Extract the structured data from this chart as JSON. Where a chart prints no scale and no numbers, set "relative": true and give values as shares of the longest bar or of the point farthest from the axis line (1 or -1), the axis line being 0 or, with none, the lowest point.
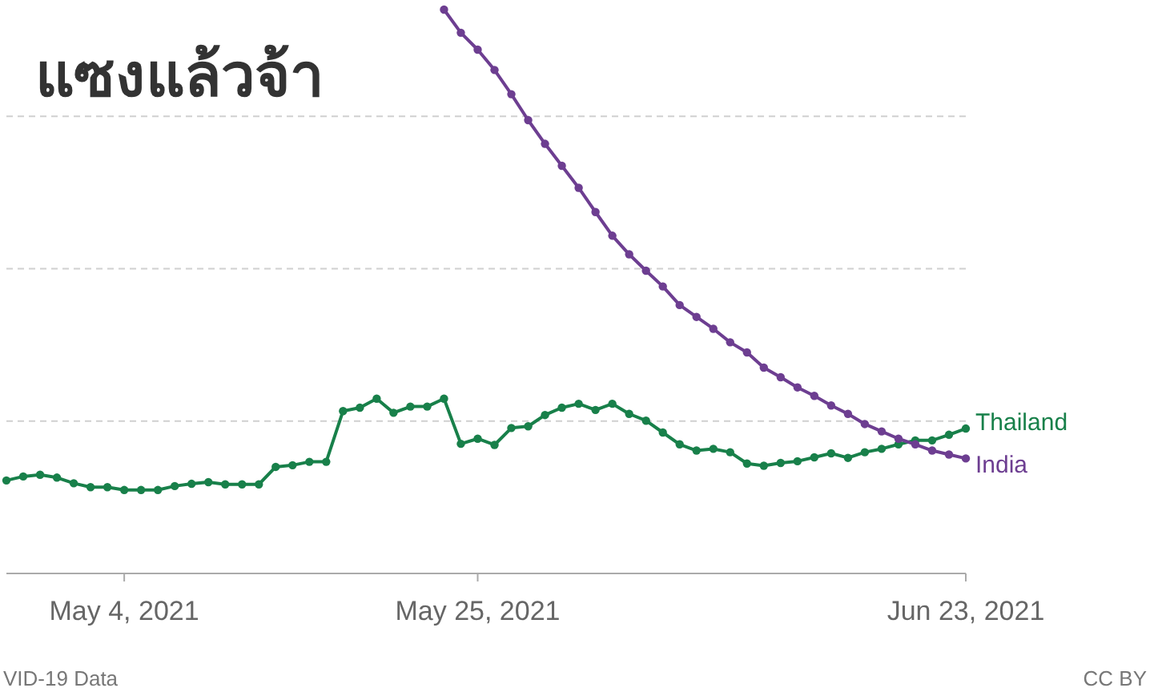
{
  "chart_data": {
    "type": "line",
    "title": "แซงแล้วจ้า",
    "relative": true,
    "marker": "circle",
    "line_style": "solid",
    "grid": "y",
    "xlim": [
      "2021-04-27",
      "2021-06-23"
    ],
    "xticks": [
      {
        "value": "2021-05-04",
        "label": "May 4, 2021"
      },
      {
        "value": "2021-05-25",
        "label": "May 25, 2021"
      },
      {
        "value": "2021-06-23",
        "label": "Jun 23, 2021"
      }
    ],
    "series": [
      {
        "name": "Thailand",
        "color": "#18804a",
        "x": [
          "2021-04-27",
          "2021-04-28",
          "2021-04-29",
          "2021-04-30",
          "2021-05-01",
          "2021-05-02",
          "2021-05-03",
          "2021-05-04",
          "2021-05-05",
          "2021-05-06",
          "2021-05-07",
          "2021-05-08",
          "2021-05-09",
          "2021-05-10",
          "2021-05-11",
          "2021-05-12",
          "2021-05-13",
          "2021-05-14",
          "2021-05-15",
          "2021-05-16",
          "2021-05-17",
          "2021-05-18",
          "2021-05-19",
          "2021-05-20",
          "2021-05-21",
          "2021-05-22",
          "2021-05-23",
          "2021-05-24",
          "2021-05-25",
          "2021-05-26",
          "2021-05-27",
          "2021-05-28",
          "2021-05-29",
          "2021-05-30",
          "2021-05-31",
          "2021-06-01",
          "2021-06-02",
          "2021-06-03",
          "2021-06-04",
          "2021-06-05",
          "2021-06-06",
          "2021-06-07",
          "2021-06-08",
          "2021-06-09",
          "2021-06-10",
          "2021-06-11",
          "2021-06-12",
          "2021-06-13",
          "2021-06-14",
          "2021-06-15",
          "2021-06-16",
          "2021-06-17",
          "2021-06-18",
          "2021-06-19",
          "2021-06-20",
          "2021-06-21",
          "2021-06-22",
          "2021-06-23"
        ],
        "values": [
          0.165,
          0.172,
          0.175,
          0.17,
          0.16,
          0.153,
          0.153,
          0.148,
          0.148,
          0.148,
          0.155,
          0.159,
          0.162,
          0.158,
          0.158,
          0.158,
          0.189,
          0.192,
          0.198,
          0.198,
          0.288,
          0.294,
          0.31,
          0.285,
          0.296,
          0.296,
          0.31,
          0.23,
          0.239,
          0.228,
          0.258,
          0.261,
          0.281,
          0.294,
          0.301,
          0.29,
          0.301,
          0.283,
          0.271,
          0.25,
          0.229,
          0.218,
          0.221,
          0.215,
          0.195,
          0.191,
          0.196,
          0.199,
          0.206,
          0.213,
          0.205,
          0.215,
          0.221,
          0.229,
          0.236,
          0.236,
          0.246,
          0.257
        ]
      },
      {
        "name": "India",
        "color": "#6d3e91",
        "x": [
          "2021-05-23",
          "2021-05-24",
          "2021-05-25",
          "2021-05-26",
          "2021-05-27",
          "2021-05-28",
          "2021-05-29",
          "2021-05-30",
          "2021-05-31",
          "2021-06-01",
          "2021-06-02",
          "2021-06-03",
          "2021-06-04",
          "2021-06-05",
          "2021-06-06",
          "2021-06-07",
          "2021-06-08",
          "2021-06-09",
          "2021-06-10",
          "2021-06-11",
          "2021-06-12",
          "2021-06-13",
          "2021-06-14",
          "2021-06-15",
          "2021-06-16",
          "2021-06-17",
          "2021-06-18",
          "2021-06-19",
          "2021-06-20",
          "2021-06-21",
          "2021-06-22",
          "2021-06-23"
        ],
        "values": [
          1.0,
          0.959,
          0.929,
          0.893,
          0.85,
          0.804,
          0.762,
          0.723,
          0.684,
          0.641,
          0.599,
          0.566,
          0.537,
          0.509,
          0.476,
          0.455,
          0.434,
          0.41,
          0.392,
          0.365,
          0.348,
          0.33,
          0.315,
          0.298,
          0.283,
          0.265,
          0.252,
          0.239,
          0.229,
          0.218,
          0.211,
          0.204
        ]
      }
    ],
    "annotations": [
      "VID-19 Data",
      "CC BY"
    ]
  }
}
